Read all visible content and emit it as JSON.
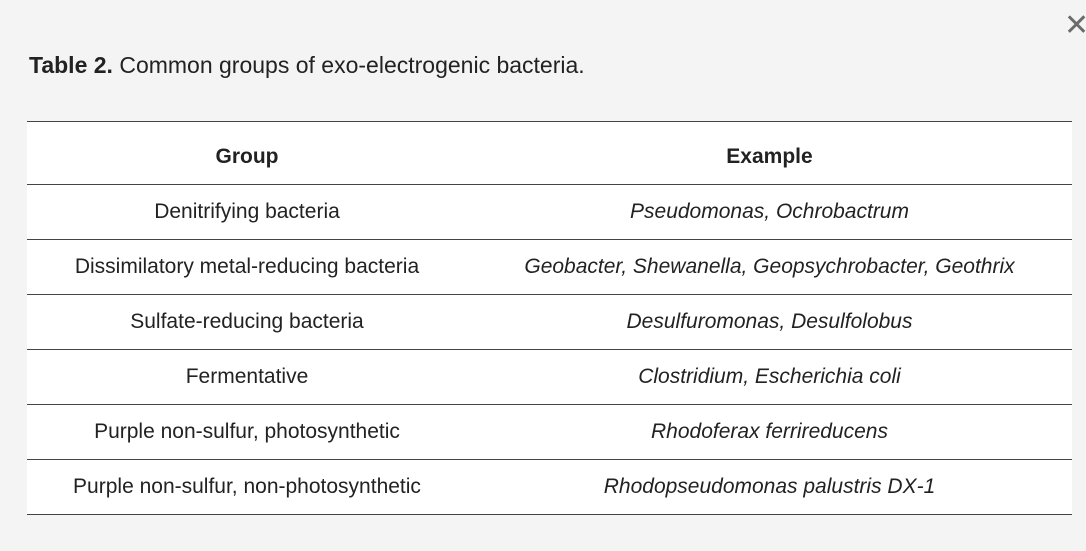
{
  "close_symbol": "✕",
  "caption": {
    "label": "Table 2.",
    "text": " Common groups of exo-electrogenic bacteria."
  },
  "table": {
    "headers": {
      "group": "Group",
      "example": "Example"
    },
    "rows": [
      {
        "group": "Denitrifying bacteria",
        "example": "Pseudomonas, Ochrobactrum"
      },
      {
        "group": "Dissimilatory metal-reducing bacteria",
        "example": "Geobacter, Shewanella, Geopsychrobacter, Geothrix"
      },
      {
        "group": "Sulfate-reducing bacteria",
        "example": "Desulfuromonas, Desulfolobus"
      },
      {
        "group": "Fermentative",
        "example": "Clostridium, Escherichia coli"
      },
      {
        "group": "Purple non-sulfur, photosynthetic",
        "example": "Rhodoferax ferrireducens"
      },
      {
        "group": "Purple non-sulfur, non-photosynthetic",
        "example": "Rhodopseudomonas palustris DX-1"
      }
    ]
  }
}
